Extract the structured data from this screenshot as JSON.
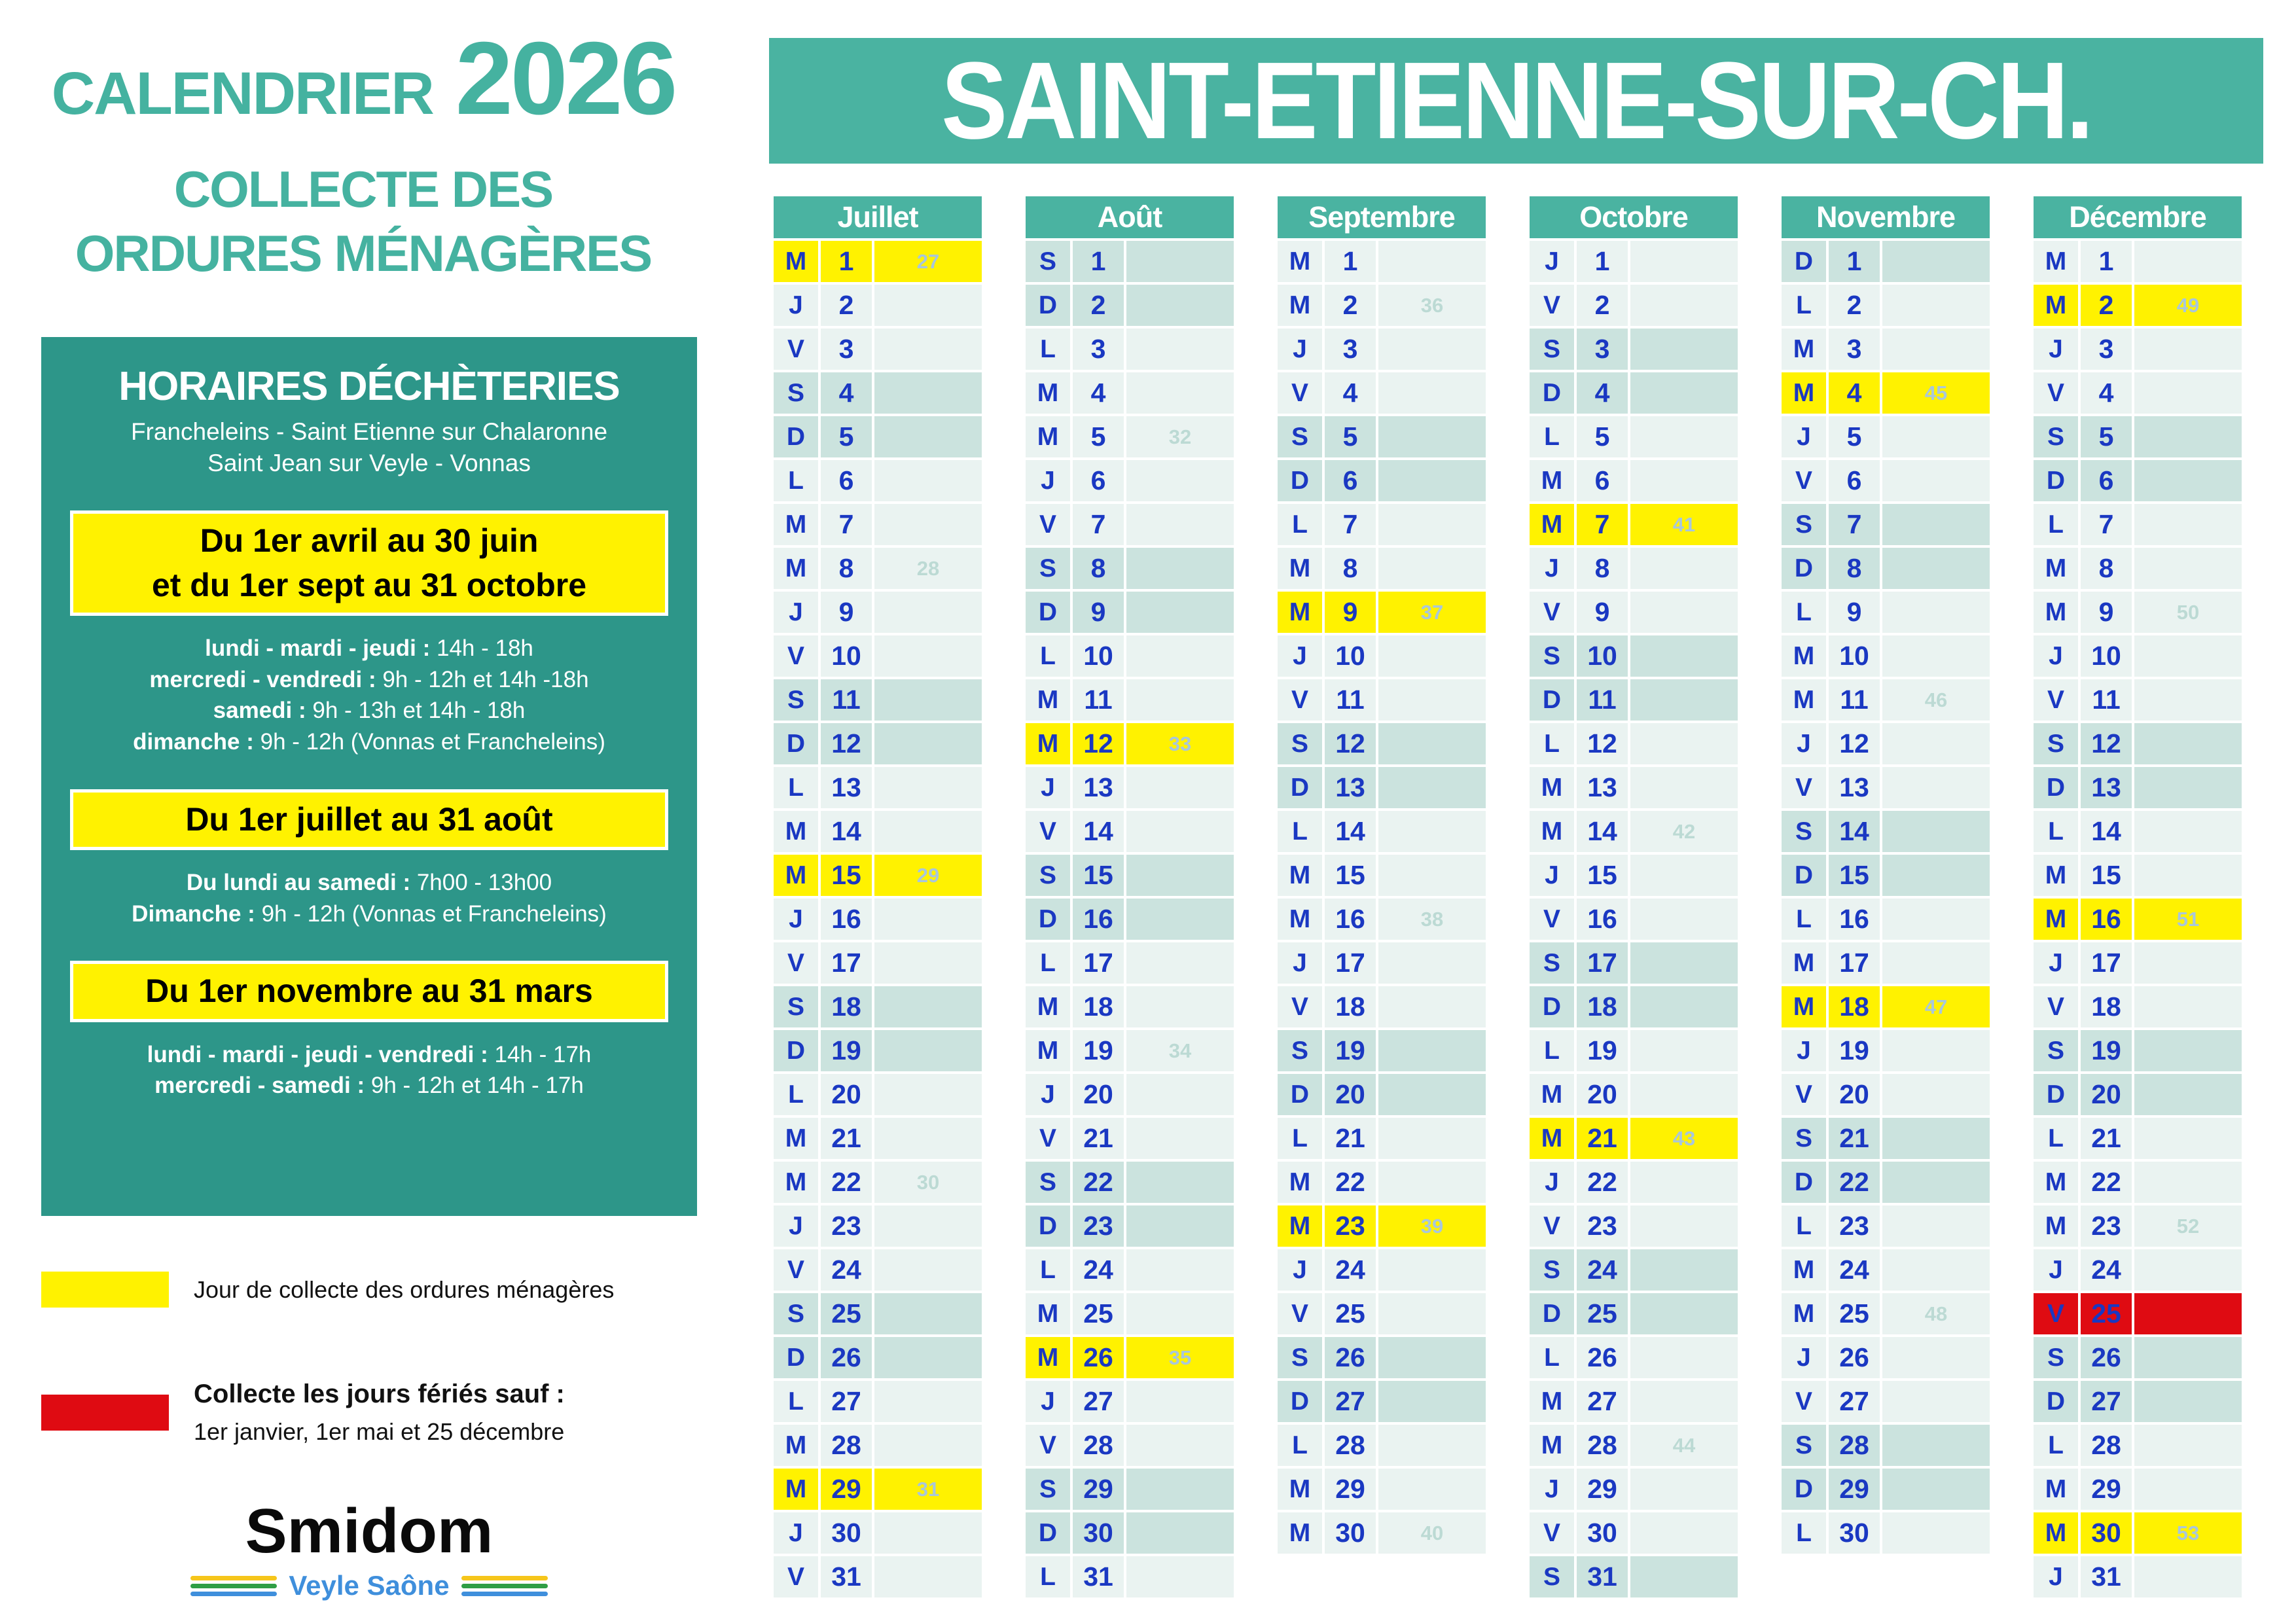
{
  "colors": {
    "teal_banner": "#4AB3A1",
    "teal_box": "#2D9689",
    "teal_text": "#45B2A0",
    "collect_yellow": "#FFF200",
    "holiday_red": "#DF0B12",
    "day_blue": "#1A38C2",
    "weekday_bg": "#EAF3F1",
    "weekend_bg": "#CBE3DE",
    "week_num": "#BCDAD4",
    "week_num_on_yellow": "#A9C7DA"
  },
  "left_panel": {
    "title_word": "CALENDRIER",
    "title_year": "2026",
    "subtitle_line1": "COLLECTE DES",
    "subtitle_line2": "ORDURES MÉNAGÈRES",
    "hours_box": {
      "heading": "HORAIRES DÉCHÈTERIES",
      "sites_line1": "Francheleins - Saint Etienne sur Chalaronne",
      "sites_line2": "Saint Jean sur Veyle - Vonnas",
      "periods": [
        {
          "title_lines": [
            "Du 1er avril au 30 juin",
            "et du 1er sept au 31 octobre"
          ],
          "rules": [
            {
              "label": "lundi - mardi - jeudi :",
              "value": "14h - 18h"
            },
            {
              "label": "mercredi - vendredi :",
              "value": "9h - 12h et 14h -18h"
            },
            {
              "label": "samedi :",
              "value": "9h - 13h et 14h - 18h"
            },
            {
              "label": "dimanche :",
              "value": "9h - 12h (Vonnas et Francheleins)"
            }
          ]
        },
        {
          "title_lines": [
            "Du 1er juillet au 31 août"
          ],
          "rules": [
            {
              "label": "Du lundi au samedi :",
              "value": "7h00 - 13h00"
            },
            {
              "label": "Dimanche :",
              "value": "9h - 12h (Vonnas et Francheleins)"
            }
          ]
        },
        {
          "title_lines": [
            "Du 1er novembre au 31 mars"
          ],
          "rules": [
            {
              "label": "lundi - mardi - jeudi - vendredi :",
              "value": "14h - 17h"
            },
            {
              "label": "mercredi - samedi :",
              "value": "9h - 12h et 14h - 17h"
            }
          ]
        }
      ]
    },
    "legend": {
      "collect": {
        "label": "Jour de collecte des ordures ménagères"
      },
      "holiday": {
        "label": "Collecte les jours fériés sauf :",
        "sublabel": "1er janvier, 1er mai et 25 décembre"
      }
    },
    "logo": {
      "name": "Smidom",
      "tagline": "Veyle Saône"
    }
  },
  "banner": {
    "commune": "SAINT-ETIENNE-SUR-CH."
  },
  "months": [
    {
      "name": "Juillet",
      "days": [
        [
          "M",
          1,
          "27",
          "c"
        ],
        [
          "J",
          2,
          "",
          "n"
        ],
        [
          "V",
          3,
          "",
          "n"
        ],
        [
          "S",
          4,
          "",
          "w"
        ],
        [
          "D",
          5,
          "",
          "w"
        ],
        [
          "L",
          6,
          "",
          "n"
        ],
        [
          "M",
          7,
          "",
          "n"
        ],
        [
          "M",
          8,
          "28",
          "n"
        ],
        [
          "J",
          9,
          "",
          "n"
        ],
        [
          "V",
          10,
          "",
          "n"
        ],
        [
          "S",
          11,
          "",
          "w"
        ],
        [
          "D",
          12,
          "",
          "w"
        ],
        [
          "L",
          13,
          "",
          "n"
        ],
        [
          "M",
          14,
          "",
          "n"
        ],
        [
          "M",
          15,
          "29",
          "c"
        ],
        [
          "J",
          16,
          "",
          "n"
        ],
        [
          "V",
          17,
          "",
          "n"
        ],
        [
          "S",
          18,
          "",
          "w"
        ],
        [
          "D",
          19,
          "",
          "w"
        ],
        [
          "L",
          20,
          "",
          "n"
        ],
        [
          "M",
          21,
          "",
          "n"
        ],
        [
          "M",
          22,
          "30",
          "n"
        ],
        [
          "J",
          23,
          "",
          "n"
        ],
        [
          "V",
          24,
          "",
          "n"
        ],
        [
          "S",
          25,
          "",
          "w"
        ],
        [
          "D",
          26,
          "",
          "w"
        ],
        [
          "L",
          27,
          "",
          "n"
        ],
        [
          "M",
          28,
          "",
          "n"
        ],
        [
          "M",
          29,
          "31",
          "c"
        ],
        [
          "J",
          30,
          "",
          "n"
        ],
        [
          "V",
          31,
          "",
          "n"
        ]
      ]
    },
    {
      "name": "Août",
      "days": [
        [
          "S",
          1,
          "",
          "w"
        ],
        [
          "D",
          2,
          "",
          "w"
        ],
        [
          "L",
          3,
          "",
          "n"
        ],
        [
          "M",
          4,
          "",
          "n"
        ],
        [
          "M",
          5,
          "32",
          "n"
        ],
        [
          "J",
          6,
          "",
          "n"
        ],
        [
          "V",
          7,
          "",
          "n"
        ],
        [
          "S",
          8,
          "",
          "w"
        ],
        [
          "D",
          9,
          "",
          "w"
        ],
        [
          "L",
          10,
          "",
          "n"
        ],
        [
          "M",
          11,
          "",
          "n"
        ],
        [
          "M",
          12,
          "33",
          "c"
        ],
        [
          "J",
          13,
          "",
          "n"
        ],
        [
          "V",
          14,
          "",
          "n"
        ],
        [
          "S",
          15,
          "",
          "w"
        ],
        [
          "D",
          16,
          "",
          "w"
        ],
        [
          "L",
          17,
          "",
          "n"
        ],
        [
          "M",
          18,
          "",
          "n"
        ],
        [
          "M",
          19,
          "34",
          "n"
        ],
        [
          "J",
          20,
          "",
          "n"
        ],
        [
          "V",
          21,
          "",
          "n"
        ],
        [
          "S",
          22,
          "",
          "w"
        ],
        [
          "D",
          23,
          "",
          "w"
        ],
        [
          "L",
          24,
          "",
          "n"
        ],
        [
          "M",
          25,
          "",
          "n"
        ],
        [
          "M",
          26,
          "35",
          "c"
        ],
        [
          "J",
          27,
          "",
          "n"
        ],
        [
          "V",
          28,
          "",
          "n"
        ],
        [
          "S",
          29,
          "",
          "w"
        ],
        [
          "D",
          30,
          "",
          "w"
        ],
        [
          "L",
          31,
          "",
          "n"
        ]
      ]
    },
    {
      "name": "Septembre",
      "days": [
        [
          "M",
          1,
          "",
          "n"
        ],
        [
          "M",
          2,
          "36",
          "n"
        ],
        [
          "J",
          3,
          "",
          "n"
        ],
        [
          "V",
          4,
          "",
          "n"
        ],
        [
          "S",
          5,
          "",
          "w"
        ],
        [
          "D",
          6,
          "",
          "w"
        ],
        [
          "L",
          7,
          "",
          "n"
        ],
        [
          "M",
          8,
          "",
          "n"
        ],
        [
          "M",
          9,
          "37",
          "c"
        ],
        [
          "J",
          10,
          "",
          "n"
        ],
        [
          "V",
          11,
          "",
          "n"
        ],
        [
          "S",
          12,
          "",
          "w"
        ],
        [
          "D",
          13,
          "",
          "w"
        ],
        [
          "L",
          14,
          "",
          "n"
        ],
        [
          "M",
          15,
          "",
          "n"
        ],
        [
          "M",
          16,
          "38",
          "n"
        ],
        [
          "J",
          17,
          "",
          "n"
        ],
        [
          "V",
          18,
          "",
          "n"
        ],
        [
          "S",
          19,
          "",
          "w"
        ],
        [
          "D",
          20,
          "",
          "w"
        ],
        [
          "L",
          21,
          "",
          "n"
        ],
        [
          "M",
          22,
          "",
          "n"
        ],
        [
          "M",
          23,
          "39",
          "c"
        ],
        [
          "J",
          24,
          "",
          "n"
        ],
        [
          "V",
          25,
          "",
          "n"
        ],
        [
          "S",
          26,
          "",
          "w"
        ],
        [
          "D",
          27,
          "",
          "w"
        ],
        [
          "L",
          28,
          "",
          "n"
        ],
        [
          "M",
          29,
          "",
          "n"
        ],
        [
          "M",
          30,
          "40",
          "n"
        ]
      ]
    },
    {
      "name": "Octobre",
      "days": [
        [
          "J",
          1,
          "",
          "n"
        ],
        [
          "V",
          2,
          "",
          "n"
        ],
        [
          "S",
          3,
          "",
          "w"
        ],
        [
          "D",
          4,
          "",
          "w"
        ],
        [
          "L",
          5,
          "",
          "n"
        ],
        [
          "M",
          6,
          "",
          "n"
        ],
        [
          "M",
          7,
          "41",
          "c"
        ],
        [
          "J",
          8,
          "",
          "n"
        ],
        [
          "V",
          9,
          "",
          "n"
        ],
        [
          "S",
          10,
          "",
          "w"
        ],
        [
          "D",
          11,
          "",
          "w"
        ],
        [
          "L",
          12,
          "",
          "n"
        ],
        [
          "M",
          13,
          "",
          "n"
        ],
        [
          "M",
          14,
          "42",
          "n"
        ],
        [
          "J",
          15,
          "",
          "n"
        ],
        [
          "V",
          16,
          "",
          "n"
        ],
        [
          "S",
          17,
          "",
          "w"
        ],
        [
          "D",
          18,
          "",
          "w"
        ],
        [
          "L",
          19,
          "",
          "n"
        ],
        [
          "M",
          20,
          "",
          "n"
        ],
        [
          "M",
          21,
          "43",
          "c"
        ],
        [
          "J",
          22,
          "",
          "n"
        ],
        [
          "V",
          23,
          "",
          "n"
        ],
        [
          "S",
          24,
          "",
          "w"
        ],
        [
          "D",
          25,
          "",
          "w"
        ],
        [
          "L",
          26,
          "",
          "n"
        ],
        [
          "M",
          27,
          "",
          "n"
        ],
        [
          "M",
          28,
          "44",
          "n"
        ],
        [
          "J",
          29,
          "",
          "n"
        ],
        [
          "V",
          30,
          "",
          "n"
        ],
        [
          "S",
          31,
          "",
          "w"
        ]
      ]
    },
    {
      "name": "Novembre",
      "days": [
        [
          "D",
          1,
          "",
          "w"
        ],
        [
          "L",
          2,
          "",
          "n"
        ],
        [
          "M",
          3,
          "",
          "n"
        ],
        [
          "M",
          4,
          "45",
          "c"
        ],
        [
          "J",
          5,
          "",
          "n"
        ],
        [
          "V",
          6,
          "",
          "n"
        ],
        [
          "S",
          7,
          "",
          "w"
        ],
        [
          "D",
          8,
          "",
          "w"
        ],
        [
          "L",
          9,
          "",
          "n"
        ],
        [
          "M",
          10,
          "",
          "n"
        ],
        [
          "M",
          11,
          "46",
          "n"
        ],
        [
          "J",
          12,
          "",
          "n"
        ],
        [
          "V",
          13,
          "",
          "n"
        ],
        [
          "S",
          14,
          "",
          "w"
        ],
        [
          "D",
          15,
          "",
          "w"
        ],
        [
          "L",
          16,
          "",
          "n"
        ],
        [
          "M",
          17,
          "",
          "n"
        ],
        [
          "M",
          18,
          "47",
          "c"
        ],
        [
          "J",
          19,
          "",
          "n"
        ],
        [
          "V",
          20,
          "",
          "n"
        ],
        [
          "S",
          21,
          "",
          "w"
        ],
        [
          "D",
          22,
          "",
          "w"
        ],
        [
          "L",
          23,
          "",
          "n"
        ],
        [
          "M",
          24,
          "",
          "n"
        ],
        [
          "M",
          25,
          "48",
          "n"
        ],
        [
          "J",
          26,
          "",
          "n"
        ],
        [
          "V",
          27,
          "",
          "n"
        ],
        [
          "S",
          28,
          "",
          "w"
        ],
        [
          "D",
          29,
          "",
          "w"
        ],
        [
          "L",
          30,
          "",
          "n"
        ]
      ]
    },
    {
      "name": "Décembre",
      "days": [
        [
          "M",
          1,
          "",
          "n"
        ],
        [
          "M",
          2,
          "49",
          "c"
        ],
        [
          "J",
          3,
          "",
          "n"
        ],
        [
          "V",
          4,
          "",
          "n"
        ],
        [
          "S",
          5,
          "",
          "w"
        ],
        [
          "D",
          6,
          "",
          "w"
        ],
        [
          "L",
          7,
          "",
          "n"
        ],
        [
          "M",
          8,
          "",
          "n"
        ],
        [
          "M",
          9,
          "50",
          "n"
        ],
        [
          "J",
          10,
          "",
          "n"
        ],
        [
          "V",
          11,
          "",
          "n"
        ],
        [
          "S",
          12,
          "",
          "w"
        ],
        [
          "D",
          13,
          "",
          "w"
        ],
        [
          "L",
          14,
          "",
          "n"
        ],
        [
          "M",
          15,
          "",
          "n"
        ],
        [
          "M",
          16,
          "51",
          "c"
        ],
        [
          "J",
          17,
          "",
          "n"
        ],
        [
          "V",
          18,
          "",
          "n"
        ],
        [
          "S",
          19,
          "",
          "w"
        ],
        [
          "D",
          20,
          "",
          "w"
        ],
        [
          "L",
          21,
          "",
          "n"
        ],
        [
          "M",
          22,
          "",
          "n"
        ],
        [
          "M",
          23,
          "52",
          "n"
        ],
        [
          "J",
          24,
          "",
          "n"
        ],
        [
          "V",
          25,
          "",
          "f"
        ],
        [
          "S",
          26,
          "",
          "w"
        ],
        [
          "D",
          27,
          "",
          "w"
        ],
        [
          "L",
          28,
          "",
          "n"
        ],
        [
          "M",
          29,
          "",
          "n"
        ],
        [
          "M",
          30,
          "53",
          "c"
        ],
        [
          "J",
          31,
          "",
          "n"
        ]
      ]
    }
  ]
}
